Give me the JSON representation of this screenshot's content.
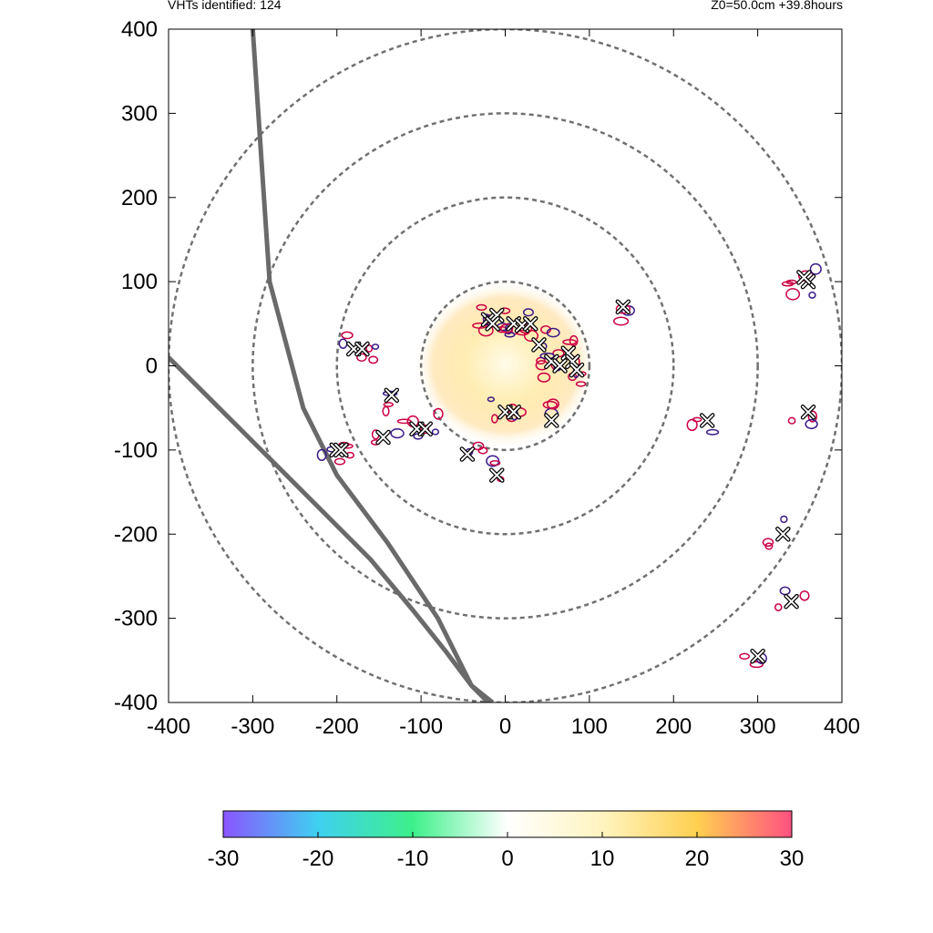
{
  "header": {
    "vht_count": "VHTs identified: 124",
    "info": "Z0=50.0cm  +39.8hours"
  },
  "colors": {
    "ring": "#707070",
    "track": "#6a6a6a",
    "contour_outer": "#cc0044",
    "contour_inner": "#3a1a8a",
    "marker_fill": "#ffffff",
    "marker_stroke": "#000000"
  },
  "chart_data": {
    "type": "scatter",
    "xlim": [
      -400,
      400
    ],
    "ylim": [
      -400,
      400
    ],
    "x_ticks": [
      -400,
      -300,
      -200,
      -100,
      0,
      100,
      200,
      300,
      400
    ],
    "y_ticks": [
      -400,
      -300,
      -200,
      -100,
      0,
      100,
      200,
      300,
      400
    ],
    "x_tick_labels": [
      "-400",
      "-300",
      "-200",
      "-100",
      "0",
      "100",
      "200",
      "300",
      "400"
    ],
    "y_tick_labels": [
      "-400",
      "-300",
      "-200",
      "-100",
      "0",
      "100",
      "200",
      "300",
      "400"
    ],
    "grid": false,
    "range_rings": [
      100,
      200,
      300,
      400
    ],
    "tracks": [
      [
        [
          -300,
          400
        ],
        [
          -290,
          250
        ],
        [
          -280,
          100
        ],
        [
          -240,
          -50
        ],
        [
          -200,
          -130
        ],
        [
          -140,
          -210
        ],
        [
          -80,
          -300
        ],
        [
          -40,
          -380
        ],
        [
          -20,
          -400
        ]
      ],
      [
        [
          -400,
          10
        ],
        [
          -340,
          -50
        ],
        [
          -280,
          -110
        ],
        [
          -220,
          -170
        ],
        [
          -160,
          -230
        ],
        [
          -110,
          -290
        ],
        [
          -70,
          -340
        ],
        [
          -40,
          -380
        ],
        [
          -15,
          -400
        ]
      ]
    ],
    "vht_markers": [
      [
        -20,
        55
      ],
      [
        -10,
        60
      ],
      [
        -15,
        50
      ],
      [
        10,
        50
      ],
      [
        20,
        48
      ],
      [
        30,
        50
      ],
      [
        40,
        25
      ],
      [
        55,
        5
      ],
      [
        65,
        0
      ],
      [
        75,
        15
      ],
      [
        80,
        5
      ],
      [
        85,
        -5
      ],
      [
        0,
        -55
      ],
      [
        10,
        -55
      ],
      [
        55,
        -65
      ],
      [
        140,
        70
      ],
      [
        240,
        -65
      ],
      [
        -180,
        20
      ],
      [
        -170,
        20
      ],
      [
        -135,
        -35
      ],
      [
        -105,
        -75
      ],
      [
        -95,
        -75
      ],
      [
        -145,
        -85
      ],
      [
        -45,
        -105
      ],
      [
        -10,
        -130
      ],
      [
        -200,
        -100
      ],
      [
        -195,
        -100
      ],
      [
        360,
        100
      ],
      [
        355,
        105
      ],
      [
        360,
        -55
      ],
      [
        330,
        -200
      ],
      [
        340,
        -280
      ],
      [
        300,
        -345
      ]
    ],
    "colorbar": {
      "min": -30,
      "max": 30,
      "ticks": [
        -30,
        -20,
        -10,
        0,
        10,
        20,
        30
      ],
      "tick_labels": [
        "-30",
        "-20",
        "-10",
        "0",
        "10",
        "20",
        "30"
      ],
      "stops": [
        "#8a55ff",
        "#3fd0f0",
        "#3df08a",
        "#ffffff",
        "#fff4c0",
        "#ffd050",
        "#ff5080"
      ]
    }
  }
}
